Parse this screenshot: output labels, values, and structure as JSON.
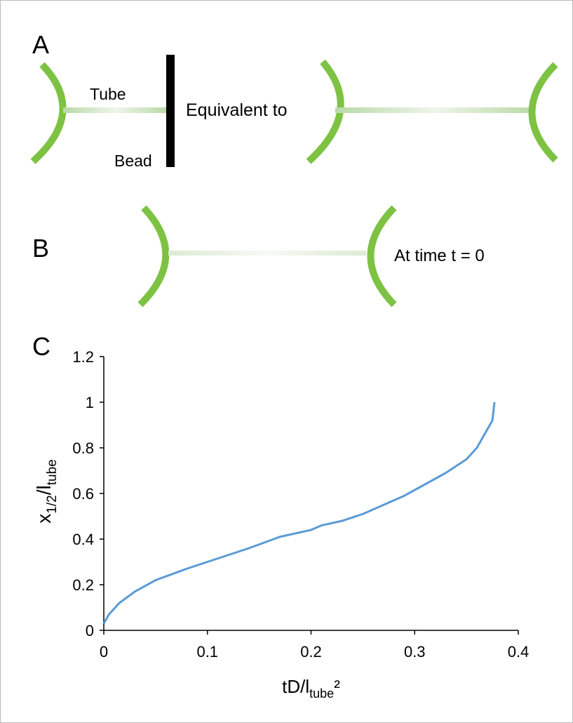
{
  "panel_a": {
    "label": "A",
    "tube": "Tube",
    "bead": "Bead",
    "equivalent": "Equivalent to"
  },
  "panel_b": {
    "label": "B",
    "caption": "At time t = 0"
  },
  "chart_data": {
    "type": "line",
    "panel_label": "C",
    "x_label": [
      "tD/l",
      "tube",
      "²"
    ],
    "y_label": [
      "x",
      "1/2",
      "/l",
      "tube"
    ],
    "x": [
      0,
      0.005,
      0.015,
      0.03,
      0.05,
      0.08,
      0.1,
      0.14,
      0.17,
      0.2,
      0.21,
      0.23,
      0.25,
      0.29,
      0.31,
      0.33,
      0.35,
      0.36,
      0.375,
      0.377
    ],
    "values": [
      0.03,
      0.07,
      0.12,
      0.17,
      0.22,
      0.27,
      0.3,
      0.36,
      0.41,
      0.44,
      0.46,
      0.48,
      0.51,
      0.59,
      0.64,
      0.69,
      0.75,
      0.8,
      0.92,
      1
    ],
    "color": "#5b9bd5",
    "xlim": [
      0,
      0.4
    ],
    "xticks": [
      0,
      0.1,
      0.2,
      0.3,
      0.4
    ],
    "ylim": [
      0,
      1.2
    ],
    "yticks": [
      0,
      0.2,
      0.4,
      0.6,
      0.8,
      1,
      1.2
    ],
    "grid": false
  }
}
